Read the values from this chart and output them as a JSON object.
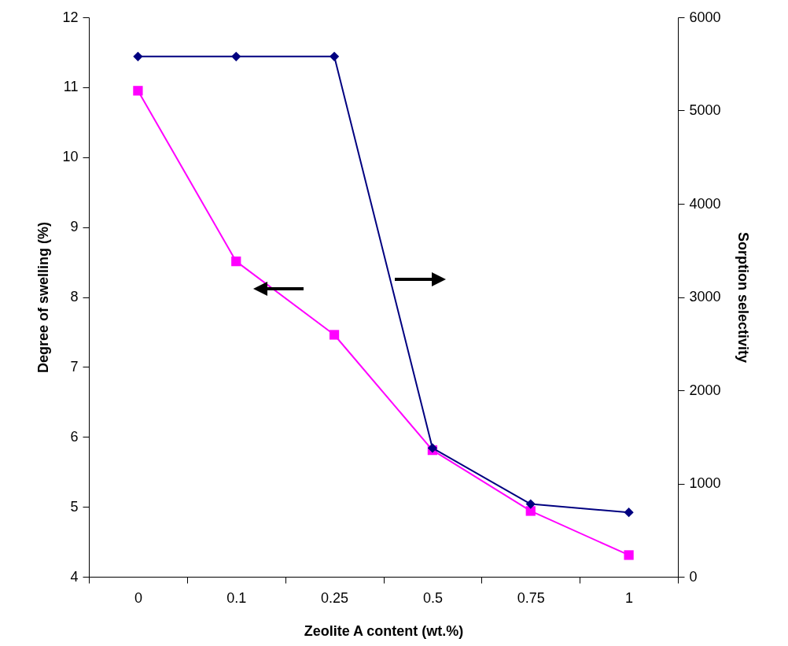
{
  "chart_data": {
    "type": "line",
    "xlabel": "Zeolite A content (wt.%)",
    "ylabel": "Degree of swelling (%)",
    "y2label": "Sorption selectivity",
    "categories": [
      "0",
      "0.1",
      "0.25",
      "0.5",
      "0.75",
      "1"
    ],
    "ylim": [
      4,
      12
    ],
    "yticks": [
      4,
      5,
      6,
      7,
      8,
      9,
      10,
      11,
      12
    ],
    "y2lim": [
      0,
      6000
    ],
    "y2ticks": [
      0,
      1000,
      2000,
      3000,
      4000,
      5000,
      6000
    ],
    "grid": false,
    "series": [
      {
        "color": "#ff00ff",
        "marker": "square",
        "values": [
          10.95,
          8.51,
          7.46,
          5.81,
          4.94,
          4.31
        ]
      },
      {
        "color": "#000080",
        "marker": "diamond",
        "axis": "y2",
        "values": [
          5580,
          5580,
          5580,
          1380,
          780,
          690
        ]
      }
    ]
  }
}
